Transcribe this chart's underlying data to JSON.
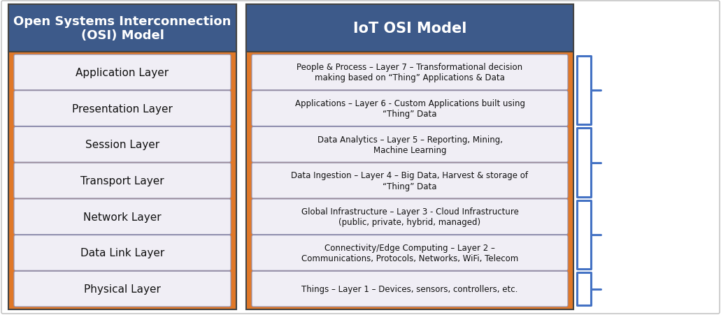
{
  "bg_color": "#ffffff",
  "outer_border_color": "#aaaaaa",
  "header_bg": "#3d5a8a",
  "panel_bg": "#e07828",
  "box_bg": "#f0eef5",
  "box_edge_color": "#9090b0",
  "header_text_color": "#ffffff",
  "box_text_color": "#111111",
  "bracket_color": "#4472c4",
  "osi_title": "Open Systems Interconnection\n(OSI) Model",
  "iot_title": "IoT OSI Model",
  "osi_layers": [
    "Application Layer",
    "Presentation Layer",
    "Session Layer",
    "Transport Layer",
    "Network Layer",
    "Data Link Layer",
    "Physical Layer"
  ],
  "iot_layers": [
    "People & Process – Layer 7 – Transformational decision\nmaking based on “Thing” Applications & Data",
    "Applications – Layer 6 - Custom Applications built using\n“Thing” Data",
    "Data Analytics – Layer 5 – Reporting, Mining,\nMachine Learning",
    "Data Ingestion – Layer 4 – Big Data, Harvest & storage of\n“Thing” Data",
    "Global Infrastructure – Layer 3 - Cloud Infrastructure\n(public, private, hybrid, managed)",
    "Connectivity/Edge Computing – Layer 2 –\nCommunications, Protocols, Networks, WiFi, Telecom",
    "Things – Layer 1 – Devices, sensors, controllers, etc."
  ],
  "bracket_groups": [
    [
      0,
      1
    ],
    [
      2,
      3
    ],
    [
      4,
      5
    ],
    [
      6
    ]
  ],
  "bracket_labels": [
    "",
    "",
    "",
    ""
  ]
}
